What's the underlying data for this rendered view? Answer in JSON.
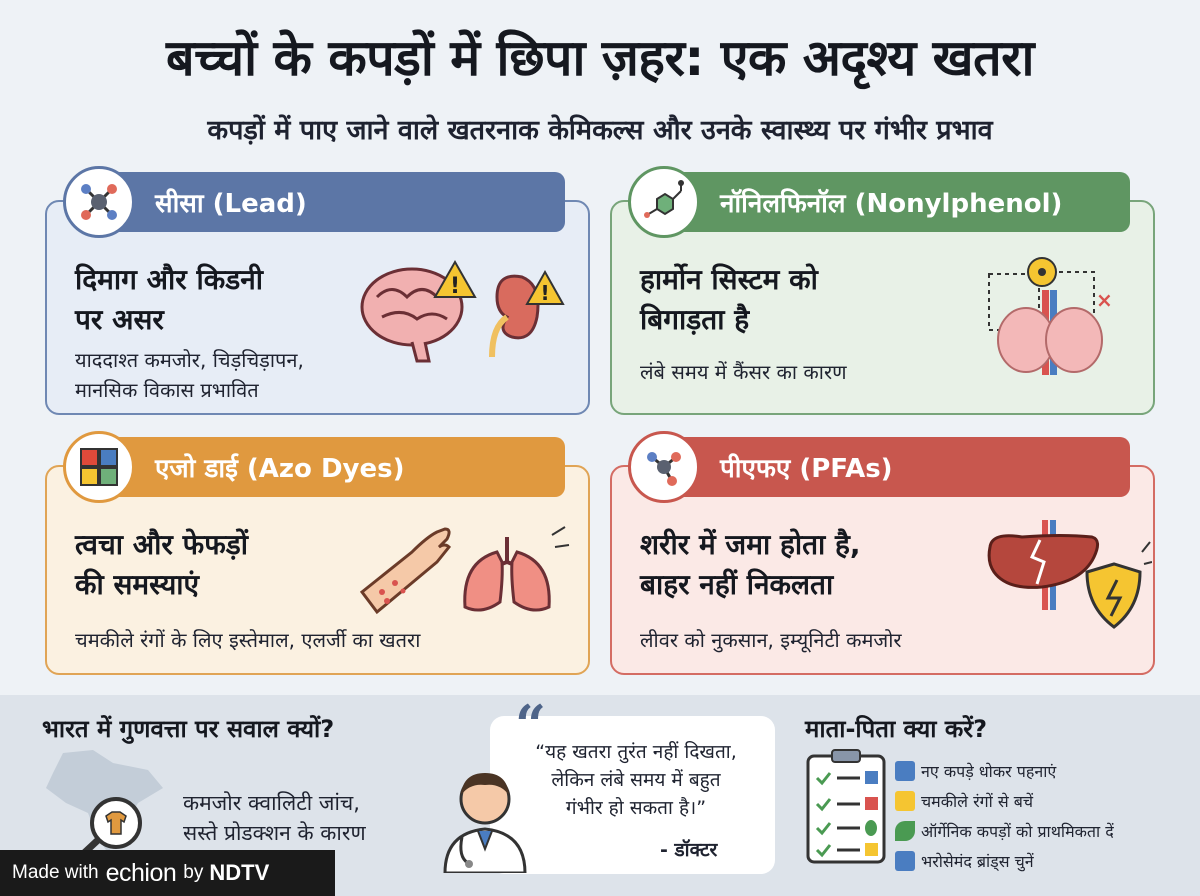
{
  "title": "बच्चों के कपड़ों में छिपा ज़हर: एक अदृश्य खतरा",
  "subtitle": "कपड़ों में पाए जाने वाले खतरनाक केमिकल्स और उनके स्वास्थ्य पर गंभीर प्रभाव",
  "cards": [
    {
      "label": "सीसा (Lead)",
      "heading_1": "दिमाग और किडनी",
      "heading_2": "पर असर",
      "desc_1": "याददाश्त कमजोर, चिड़चिड़ापन,",
      "desc_2": "मानसिक विकास प्रभावित",
      "icon": "molecule-icon",
      "color": "#5c76a6"
    },
    {
      "label": "नॉनिलफिनॉल (Nonylphenol)",
      "heading_1": "हार्मोन सिस्टम को",
      "heading_2": "बिगाड़ता है",
      "desc_1": "लंबे समय में कैंसर का कारण",
      "icon": "chemical-structure-icon",
      "color": "#5f9662"
    },
    {
      "label": "एजो डाई (Azo Dyes)",
      "heading_1": "त्वचा और फेफड़ों",
      "heading_2": "की समस्याएं",
      "desc_1": "चमकीले रंगों के लिए इस्तेमाल, एलर्जी का खतरा",
      "icon": "color-palette-icon",
      "color": "#e0993f"
    },
    {
      "label": "पीएफए (PFAs)",
      "heading_1": "शरीर में जमा होता है,",
      "heading_2": "बाहर नहीं निकलता",
      "desc_1": "लीवर को नुकसान, इम्यूनिटी कमजोर",
      "icon": "molecule-icon",
      "color": "#c8574e"
    }
  ],
  "bottom": {
    "india_heading": "भारत में गुणवत्ता पर सवाल क्यों?",
    "india_text_1": "कमजोर क्वालिटी जांच,",
    "india_text_2": "सस्ते प्रोडक्शन के कारण",
    "quote_mark": "“",
    "quote_1": "“यह खतरा तुरंत नहीं दिखता,",
    "quote_2": "लेकिन लंबे समय में बहुत",
    "quote_3": "गंभीर हो सकता है।”",
    "quote_author": "- डॉक्टर",
    "parents_heading": "माता-पिता क्या करें?",
    "tips": [
      "नए कपड़े धोकर पहनाएं",
      "चमकीले रंगों से बचें",
      "ऑर्गेनिक कपड़ों को प्राथमिकता दें",
      "भरोसेमंद ब्रांड्स चुनें"
    ]
  },
  "footer": {
    "made_with": "Made with",
    "brand": "echion",
    "by": "by",
    "publisher": "NDTV"
  }
}
